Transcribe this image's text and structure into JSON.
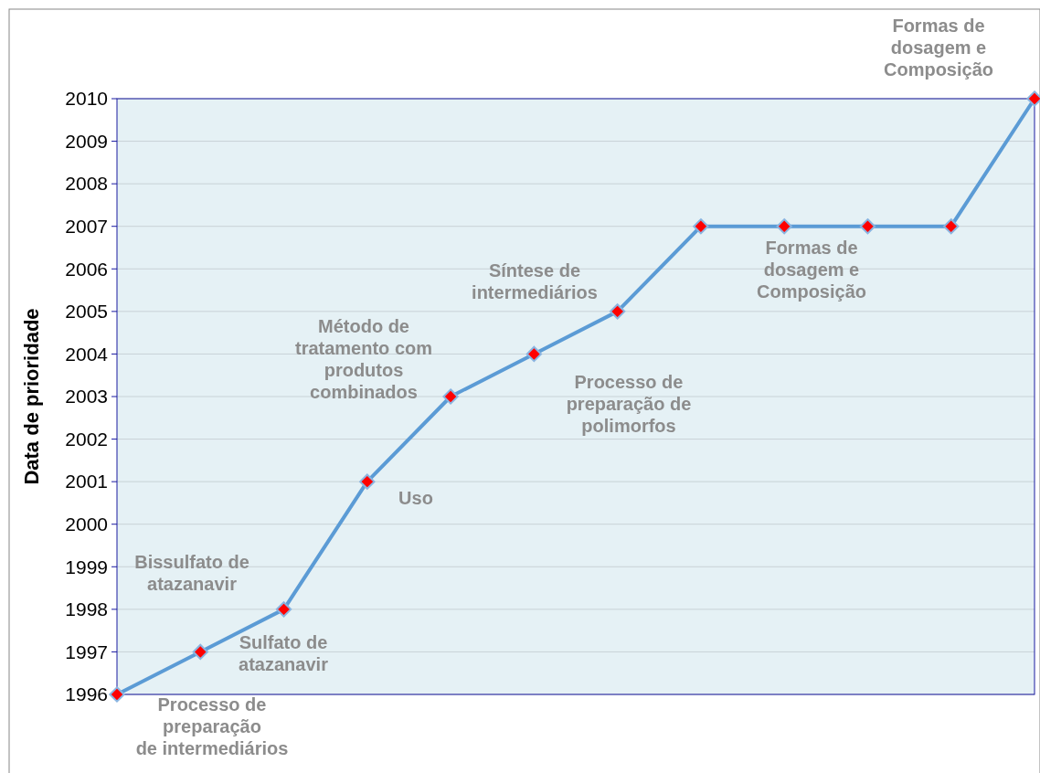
{
  "chart_data": {
    "type": "line",
    "ylabel": "Data de prioridade",
    "categories": [
      null,
      null,
      null,
      null,
      null,
      null,
      null,
      null,
      null,
      null,
      null,
      null
    ],
    "series": [
      {
        "color": "#5b9bd5",
        "values": [
          1996,
          1997,
          1998,
          2001,
          2003,
          2004,
          2005,
          2007,
          2007,
          2007,
          2007,
          2010
        ]
      }
    ],
    "ylim": [
      1996,
      2010
    ],
    "yticks": [
      1996,
      1997,
      1998,
      1999,
      2000,
      2001,
      2002,
      2003,
      2004,
      2005,
      2006,
      2007,
      2008,
      2009,
      2010
    ],
    "grid": "y",
    "marker": "diamond",
    "annotations": [
      "Processo de preparação de intermediários",
      "Bissulfato de atazanavir",
      "Sulfato de atazanavir",
      "Uso",
      "Método de tratamento com produtos combinados",
      "Síntese de intermediários",
      "Processo de preparação de polimorfos",
      "Formas de dosagem e Composição",
      "Formas de dosagem e Composição"
    ]
  }
}
